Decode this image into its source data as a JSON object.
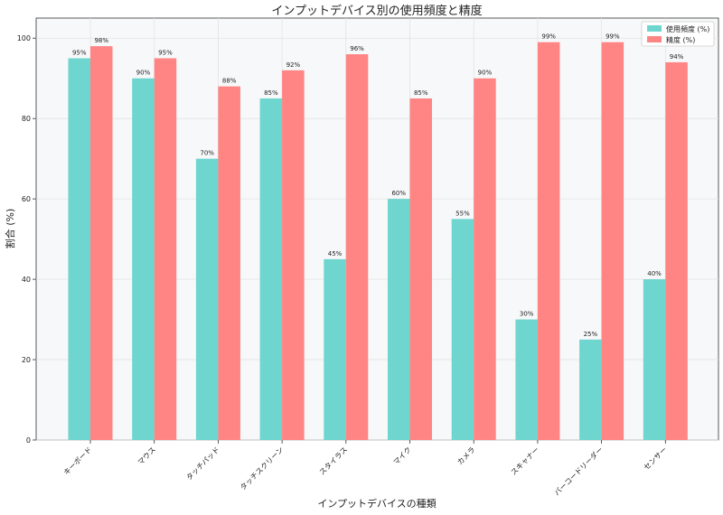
{
  "chart_data": {
    "type": "bar",
    "title": "インプットデバイス別の使用頻度と精度",
    "xlabel": "インプットデバイスの種類",
    "ylabel": "割合 (%)",
    "ylim": [
      0,
      105
    ],
    "yticks": [
      0,
      20,
      40,
      60,
      80,
      100
    ],
    "grid": true,
    "legend_position": "top-right",
    "categories": [
      "キーボード",
      "マウス",
      "タッチパッド",
      "タッチスクリーン",
      "スタイラス",
      "マイク",
      "カメラ",
      "スキャナー",
      "バーコードリーダー",
      "センサー"
    ],
    "series": [
      {
        "name": "使用頻度 (%)",
        "color": "#6fd5cf",
        "values": [
          95,
          90,
          70,
          85,
          45,
          60,
          55,
          30,
          25,
          40
        ],
        "labels": [
          "95%",
          "90%",
          "70%",
          "85%",
          "45%",
          "60%",
          "55%",
          "30%",
          "25%",
          "40%"
        ]
      },
      {
        "name": "精度 (%)",
        "color": "#ff8585",
        "values": [
          98,
          95,
          88,
          92,
          96,
          85,
          90,
          99,
          99,
          94
        ],
        "labels": [
          "98%",
          "95%",
          "88%",
          "92%",
          "96%",
          "85%",
          "90%",
          "99%",
          "99%",
          "94%"
        ]
      }
    ]
  }
}
